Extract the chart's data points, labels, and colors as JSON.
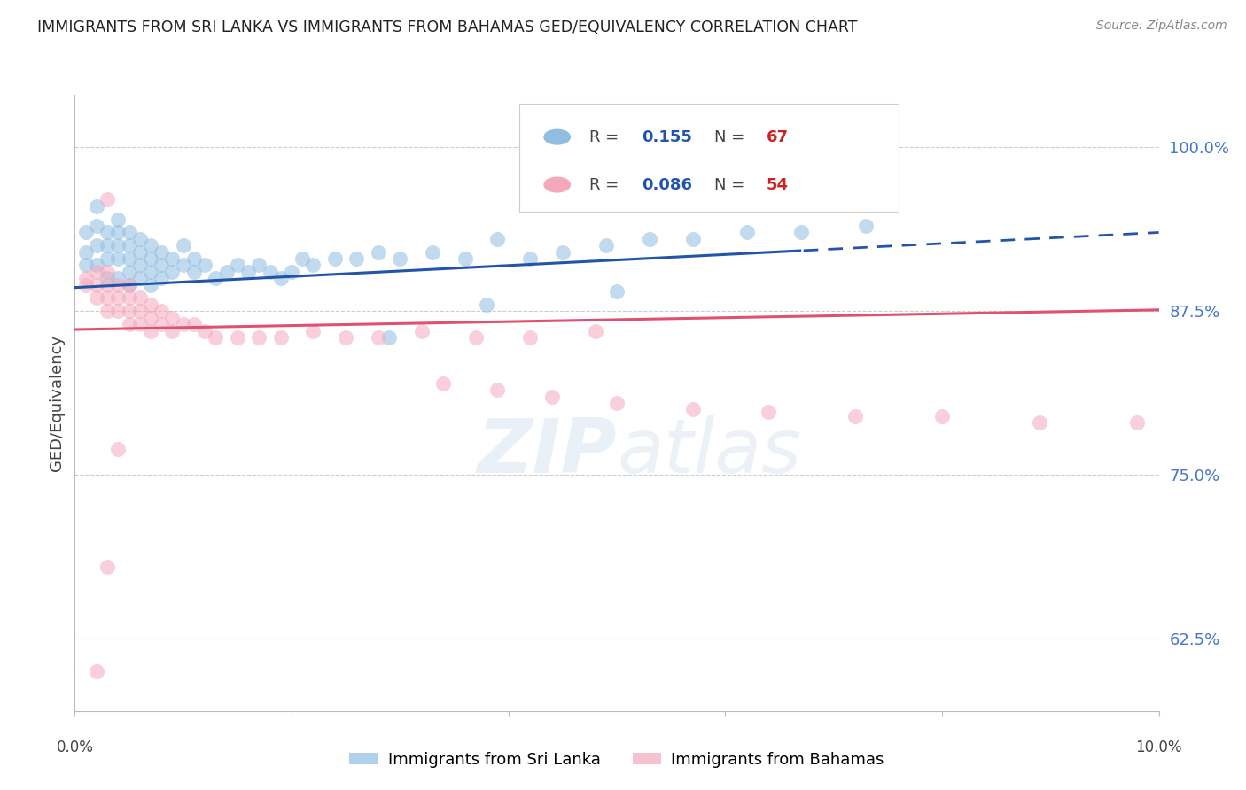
{
  "title": "IMMIGRANTS FROM SRI LANKA VS IMMIGRANTS FROM BAHAMAS GED/EQUIVALENCY CORRELATION CHART",
  "source": "Source: ZipAtlas.com",
  "ylabel": "GED/Equivalency",
  "ytick_values": [
    0.625,
    0.75,
    0.875,
    1.0
  ],
  "ytick_labels": [
    "62.5%",
    "75.0%",
    "87.5%",
    "100.0%"
  ],
  "xlim": [
    0.0,
    0.1
  ],
  "ylim": [
    0.57,
    1.04
  ],
  "sri_lanka_color": "#91bde0",
  "bahamas_color": "#f4a8bc",
  "sri_lanka_line_color": "#2255aa",
  "bahamas_line_color": "#e05070",
  "legend_R_sri": "0.155",
  "legend_N_sri": "67",
  "legend_R_bah": "0.086",
  "legend_N_bah": "54",
  "sri_lanka_x": [
    0.001,
    0.001,
    0.001,
    0.002,
    0.002,
    0.002,
    0.002,
    0.003,
    0.003,
    0.003,
    0.003,
    0.004,
    0.004,
    0.004,
    0.004,
    0.004,
    0.005,
    0.005,
    0.005,
    0.005,
    0.005,
    0.006,
    0.006,
    0.006,
    0.006,
    0.007,
    0.007,
    0.007,
    0.007,
    0.008,
    0.008,
    0.008,
    0.009,
    0.009,
    0.01,
    0.01,
    0.011,
    0.011,
    0.012,
    0.013,
    0.014,
    0.015,
    0.016,
    0.017,
    0.018,
    0.019,
    0.02,
    0.021,
    0.022,
    0.024,
    0.026,
    0.028,
    0.03,
    0.033,
    0.036,
    0.039,
    0.042,
    0.045,
    0.049,
    0.053,
    0.057,
    0.062,
    0.067,
    0.073,
    0.05,
    0.038,
    0.029
  ],
  "sri_lanka_y": [
    0.935,
    0.92,
    0.91,
    0.955,
    0.94,
    0.925,
    0.91,
    0.935,
    0.925,
    0.915,
    0.9,
    0.945,
    0.935,
    0.925,
    0.915,
    0.9,
    0.935,
    0.925,
    0.915,
    0.905,
    0.895,
    0.93,
    0.92,
    0.91,
    0.9,
    0.925,
    0.915,
    0.905,
    0.895,
    0.92,
    0.91,
    0.9,
    0.915,
    0.905,
    0.925,
    0.91,
    0.915,
    0.905,
    0.91,
    0.9,
    0.905,
    0.91,
    0.905,
    0.91,
    0.905,
    0.9,
    0.905,
    0.915,
    0.91,
    0.915,
    0.915,
    0.92,
    0.915,
    0.92,
    0.915,
    0.93,
    0.915,
    0.92,
    0.925,
    0.93,
    0.93,
    0.935,
    0.935,
    0.94,
    0.89,
    0.88,
    0.855
  ],
  "bahamas_x": [
    0.001,
    0.001,
    0.002,
    0.002,
    0.002,
    0.003,
    0.003,
    0.003,
    0.003,
    0.004,
    0.004,
    0.004,
    0.005,
    0.005,
    0.005,
    0.005,
    0.006,
    0.006,
    0.006,
    0.007,
    0.007,
    0.007,
    0.008,
    0.008,
    0.009,
    0.009,
    0.01,
    0.011,
    0.012,
    0.013,
    0.015,
    0.017,
    0.019,
    0.022,
    0.025,
    0.028,
    0.032,
    0.037,
    0.042,
    0.048,
    0.034,
    0.039,
    0.044,
    0.05,
    0.057,
    0.064,
    0.072,
    0.08,
    0.089,
    0.098,
    0.003,
    0.004,
    0.003,
    0.002
  ],
  "bahamas_y": [
    0.9,
    0.895,
    0.905,
    0.895,
    0.885,
    0.905,
    0.895,
    0.885,
    0.875,
    0.895,
    0.885,
    0.875,
    0.895,
    0.885,
    0.875,
    0.865,
    0.885,
    0.875,
    0.865,
    0.88,
    0.87,
    0.86,
    0.875,
    0.865,
    0.87,
    0.86,
    0.865,
    0.865,
    0.86,
    0.855,
    0.855,
    0.855,
    0.855,
    0.86,
    0.855,
    0.855,
    0.86,
    0.855,
    0.855,
    0.86,
    0.82,
    0.815,
    0.81,
    0.805,
    0.8,
    0.798,
    0.795,
    0.795,
    0.79,
    0.79,
    0.96,
    0.77,
    0.68,
    0.6
  ]
}
